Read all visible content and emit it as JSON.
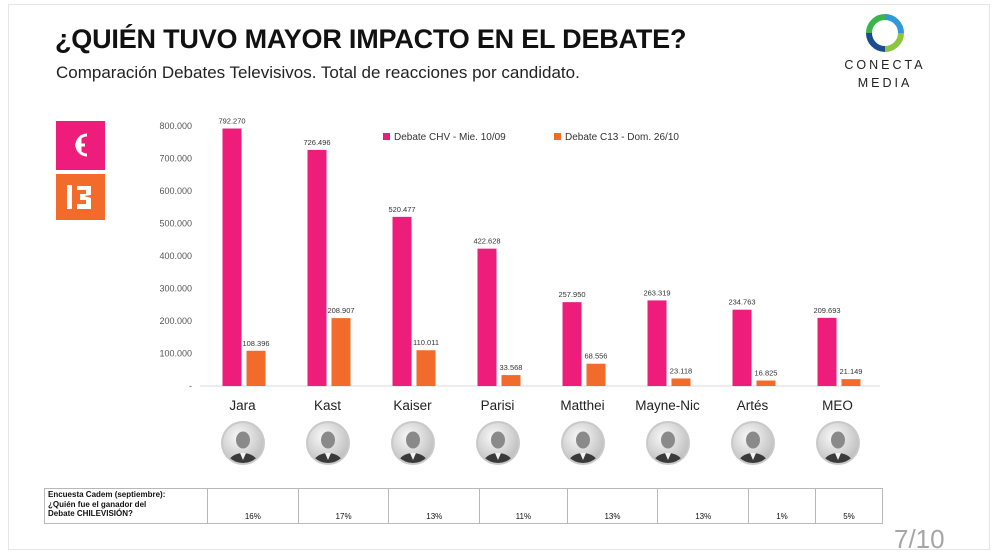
{
  "header": {
    "title": "¿QUIÉN TUVO MAYOR IMPACTO EN EL DEBATE?",
    "subtitle": "Comparación Debates Televisivos. Total de reacciones por candidato."
  },
  "logo": {
    "line1": "CONECTA",
    "line2": "MEDIA"
  },
  "colors": {
    "chv": "#ee1c7a",
    "c13": "#f26b2b"
  },
  "chart_data": {
    "type": "bar",
    "categories": [
      "Jara",
      "Kast",
      "Kaiser",
      "Parisi",
      "Matthei",
      "Mayne-Nic",
      "Artés",
      "MEO"
    ],
    "series": [
      {
        "name": "Debate CHV - Mie. 10/09",
        "values": [
          792270,
          726496,
          520477,
          422628,
          257950,
          263319,
          234763,
          209693
        ],
        "labels": [
          "792.270",
          "726.496",
          "520.477",
          "422.628",
          "257.950",
          "263.319",
          "234.763",
          "209.693"
        ]
      },
      {
        "name": "Debate C13 - Dom. 26/10",
        "values": [
          108396,
          208907,
          110011,
          33568,
          68556,
          23118,
          16825,
          21149
        ],
        "labels": [
          "108.396",
          "208.907",
          "110.011",
          "33.568",
          "68.556",
          "23.118",
          "16.825",
          "21.149"
        ]
      }
    ],
    "ylim": [
      0,
      800000
    ],
    "yticks": [
      0,
      100000,
      200000,
      300000,
      400000,
      500000,
      600000,
      700000,
      800000
    ],
    "ytick_labels": [
      "-",
      "100.000",
      "200.000",
      "300.000",
      "400.000",
      "500.000",
      "600.000",
      "700.000",
      "800.000"
    ],
    "legend": "top-right",
    "grid": false
  },
  "survey": {
    "question": [
      "Encuesta Cadem (septiembre):",
      "¿Quién fue el ganador del",
      "Debate CHILEVISIÓN?"
    ],
    "values": [
      "16%",
      "17%",
      "13%",
      "11%",
      "13%",
      "13%",
      "1%",
      "5%"
    ]
  },
  "page_number": "7/10"
}
